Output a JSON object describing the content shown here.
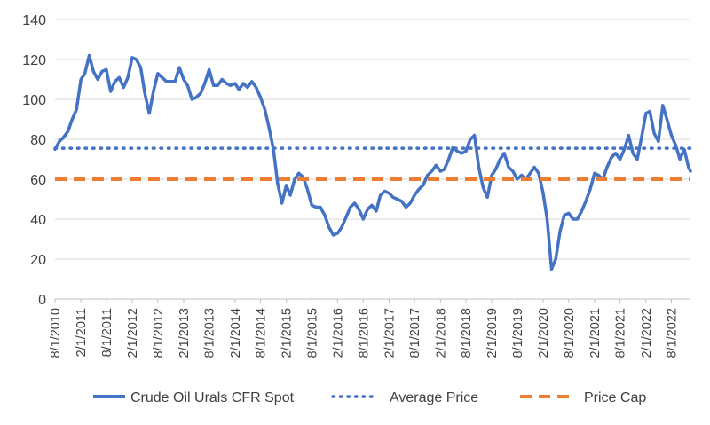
{
  "chart_data": {
    "type": "line",
    "title": "",
    "xlabel": "",
    "ylabel": "",
    "ylim": [
      0,
      140
    ],
    "y_ticks": [
      "0",
      "20",
      "40",
      "60",
      "80",
      "100",
      "120",
      "140"
    ],
    "x_range": [
      "2010-08-01",
      "2022-12-15"
    ],
    "x_tick_labels": [
      {
        "date": "2010-08-01",
        "label": "8/1/2010"
      },
      {
        "date": "2011-02-01",
        "label": "2/1/2011"
      },
      {
        "date": "2011-08-01",
        "label": "8/1/2011"
      },
      {
        "date": "2012-02-01",
        "label": "2/1/2012"
      },
      {
        "date": "2012-08-01",
        "label": "8/1/2012"
      },
      {
        "date": "2013-02-01",
        "label": "2/1/2013"
      },
      {
        "date": "2013-08-01",
        "label": "8/1/2013"
      },
      {
        "date": "2014-02-01",
        "label": "2/1/2014"
      },
      {
        "date": "2014-08-01",
        "label": "8/1/2014"
      },
      {
        "date": "2015-02-01",
        "label": "2/1/2015"
      },
      {
        "date": "2015-08-01",
        "label": "8/1/2015"
      },
      {
        "date": "2016-02-01",
        "label": "2/1/2016"
      },
      {
        "date": "2016-08-01",
        "label": "8/1/2016"
      },
      {
        "date": "2017-02-01",
        "label": "2/1/2017"
      },
      {
        "date": "2017-08-01",
        "label": "8/1/2017"
      },
      {
        "date": "2018-02-01",
        "label": "2/1/2018"
      },
      {
        "date": "2018-08-01",
        "label": "8/1/2018"
      },
      {
        "date": "2019-02-01",
        "label": "2/1/2019"
      },
      {
        "date": "2019-08-01",
        "label": "8/1/2019"
      },
      {
        "date": "2020-02-01",
        "label": "2/1/2020"
      },
      {
        "date": "2020-08-01",
        "label": "8/1/2020"
      },
      {
        "date": "2021-02-01",
        "label": "2/1/2021"
      },
      {
        "date": "2021-08-01",
        "label": "8/1/2021"
      },
      {
        "date": "2022-02-01",
        "label": "2/1/2022"
      },
      {
        "date": "2022-08-01",
        "label": "8/1/2022"
      }
    ],
    "grid": true,
    "legend_position": "bottom",
    "series": [
      {
        "name": "Crude Oil Urals CFR Spot",
        "color": "#4472C4",
        "style": "solid",
        "points": [
          [
            "2010-08-01",
            75
          ],
          [
            "2010-09-01",
            79
          ],
          [
            "2010-10-01",
            81
          ],
          [
            "2010-11-01",
            84
          ],
          [
            "2010-12-01",
            90
          ],
          [
            "2011-01-01",
            95
          ],
          [
            "2011-02-01",
            110
          ],
          [
            "2011-03-01",
            113
          ],
          [
            "2011-04-01",
            122
          ],
          [
            "2011-05-01",
            114
          ],
          [
            "2011-06-01",
            110
          ],
          [
            "2011-07-01",
            114
          ],
          [
            "2011-08-01",
            115
          ],
          [
            "2011-09-01",
            104
          ],
          [
            "2011-10-01",
            109
          ],
          [
            "2011-11-01",
            111
          ],
          [
            "2011-12-01",
            106
          ],
          [
            "2012-01-01",
            111
          ],
          [
            "2012-02-01",
            121
          ],
          [
            "2012-03-01",
            120
          ],
          [
            "2012-04-01",
            116
          ],
          [
            "2012-05-01",
            103
          ],
          [
            "2012-06-01",
            93
          ],
          [
            "2012-07-01",
            104
          ],
          [
            "2012-08-01",
            113
          ],
          [
            "2012-09-01",
            111
          ],
          [
            "2012-10-01",
            109
          ],
          [
            "2012-11-01",
            109
          ],
          [
            "2012-12-01",
            109
          ],
          [
            "2013-01-01",
            116
          ],
          [
            "2013-02-01",
            110
          ],
          [
            "2013-03-01",
            107
          ],
          [
            "2013-04-01",
            100
          ],
          [
            "2013-05-01",
            101
          ],
          [
            "2013-06-01",
            103
          ],
          [
            "2013-07-01",
            108
          ],
          [
            "2013-08-01",
            115
          ],
          [
            "2013-09-01",
            107
          ],
          [
            "2013-10-01",
            107
          ],
          [
            "2013-11-01",
            110
          ],
          [
            "2013-12-01",
            108
          ],
          [
            "2014-01-01",
            107
          ],
          [
            "2014-02-01",
            108
          ],
          [
            "2014-03-01",
            105
          ],
          [
            "2014-04-01",
            108
          ],
          [
            "2014-05-01",
            106
          ],
          [
            "2014-06-01",
            109
          ],
          [
            "2014-07-01",
            106
          ],
          [
            "2014-08-01",
            101
          ],
          [
            "2014-09-01",
            95
          ],
          [
            "2014-10-01",
            86
          ],
          [
            "2014-11-01",
            75
          ],
          [
            "2014-12-01",
            58
          ],
          [
            "2015-01-01",
            48
          ],
          [
            "2015-02-01",
            57
          ],
          [
            "2015-03-01",
            52
          ],
          [
            "2015-04-01",
            60
          ],
          [
            "2015-05-01",
            63
          ],
          [
            "2015-06-01",
            61
          ],
          [
            "2015-07-01",
            55
          ],
          [
            "2015-08-01",
            47
          ],
          [
            "2015-09-01",
            46
          ],
          [
            "2015-10-01",
            46
          ],
          [
            "2015-11-01",
            42
          ],
          [
            "2015-12-01",
            36
          ],
          [
            "2016-01-01",
            32
          ],
          [
            "2016-02-01",
            33
          ],
          [
            "2016-03-01",
            36
          ],
          [
            "2016-04-01",
            41
          ],
          [
            "2016-05-01",
            46
          ],
          [
            "2016-06-01",
            48
          ],
          [
            "2016-07-01",
            45
          ],
          [
            "2016-08-01",
            40
          ],
          [
            "2016-09-01",
            45
          ],
          [
            "2016-10-01",
            47
          ],
          [
            "2016-11-01",
            44
          ],
          [
            "2016-12-01",
            52
          ],
          [
            "2017-01-01",
            54
          ],
          [
            "2017-02-01",
            53
          ],
          [
            "2017-03-01",
            51
          ],
          [
            "2017-04-01",
            50
          ],
          [
            "2017-05-01",
            49
          ],
          [
            "2017-06-01",
            46
          ],
          [
            "2017-07-01",
            48
          ],
          [
            "2017-08-01",
            52
          ],
          [
            "2017-09-01",
            55
          ],
          [
            "2017-10-01",
            57
          ],
          [
            "2017-11-01",
            62
          ],
          [
            "2017-12-01",
            64
          ],
          [
            "2018-01-01",
            67
          ],
          [
            "2018-02-01",
            64
          ],
          [
            "2018-03-01",
            65
          ],
          [
            "2018-04-01",
            70
          ],
          [
            "2018-05-01",
            76
          ],
          [
            "2018-06-01",
            74
          ],
          [
            "2018-07-01",
            73
          ],
          [
            "2018-08-01",
            74
          ],
          [
            "2018-09-01",
            80
          ],
          [
            "2018-10-01",
            82
          ],
          [
            "2018-11-01",
            66
          ],
          [
            "2018-12-01",
            56
          ],
          [
            "2019-01-01",
            51
          ],
          [
            "2019-02-01",
            62
          ],
          [
            "2019-03-01",
            65
          ],
          [
            "2019-04-01",
            70
          ],
          [
            "2019-05-01",
            73
          ],
          [
            "2019-06-01",
            66
          ],
          [
            "2019-07-01",
            64
          ],
          [
            "2019-08-01",
            60
          ],
          [
            "2019-09-01",
            62
          ],
          [
            "2019-10-01",
            60
          ],
          [
            "2019-11-01",
            63
          ],
          [
            "2019-12-01",
            66
          ],
          [
            "2020-01-01",
            63
          ],
          [
            "2020-02-01",
            53
          ],
          [
            "2020-03-01",
            40
          ],
          [
            "2020-04-01",
            15
          ],
          [
            "2020-05-01",
            20
          ],
          [
            "2020-06-01",
            34
          ],
          [
            "2020-07-01",
            42
          ],
          [
            "2020-08-01",
            43
          ],
          [
            "2020-09-01",
            40
          ],
          [
            "2020-10-01",
            40
          ],
          [
            "2020-11-01",
            44
          ],
          [
            "2020-12-01",
            49
          ],
          [
            "2021-01-01",
            55
          ],
          [
            "2021-02-01",
            63
          ],
          [
            "2021-03-01",
            62
          ],
          [
            "2021-04-01",
            60
          ],
          [
            "2021-05-01",
            66
          ],
          [
            "2021-06-01",
            71
          ],
          [
            "2021-07-01",
            73
          ],
          [
            "2021-08-01",
            70
          ],
          [
            "2021-09-01",
            75
          ],
          [
            "2021-10-01",
            82
          ],
          [
            "2021-11-01",
            73
          ],
          [
            "2021-12-01",
            70
          ],
          [
            "2022-01-01",
            81
          ],
          [
            "2022-02-01",
            93
          ],
          [
            "2022-03-01",
            94
          ],
          [
            "2022-04-01",
            83
          ],
          [
            "2022-05-01",
            79
          ],
          [
            "2022-06-01",
            97
          ],
          [
            "2022-07-01",
            90
          ],
          [
            "2022-08-01",
            82
          ],
          [
            "2022-09-01",
            77
          ],
          [
            "2022-10-01",
            70
          ],
          [
            "2022-11-01",
            75
          ],
          [
            "2022-12-01",
            66
          ],
          [
            "2022-12-15",
            64
          ]
        ]
      },
      {
        "name": "Average Price",
        "color": "#4472C4",
        "style": "dotted",
        "value": 75.5
      },
      {
        "name": "Price Cap",
        "color": "#ED7D31",
        "style": "dashed",
        "value": 60
      }
    ]
  }
}
